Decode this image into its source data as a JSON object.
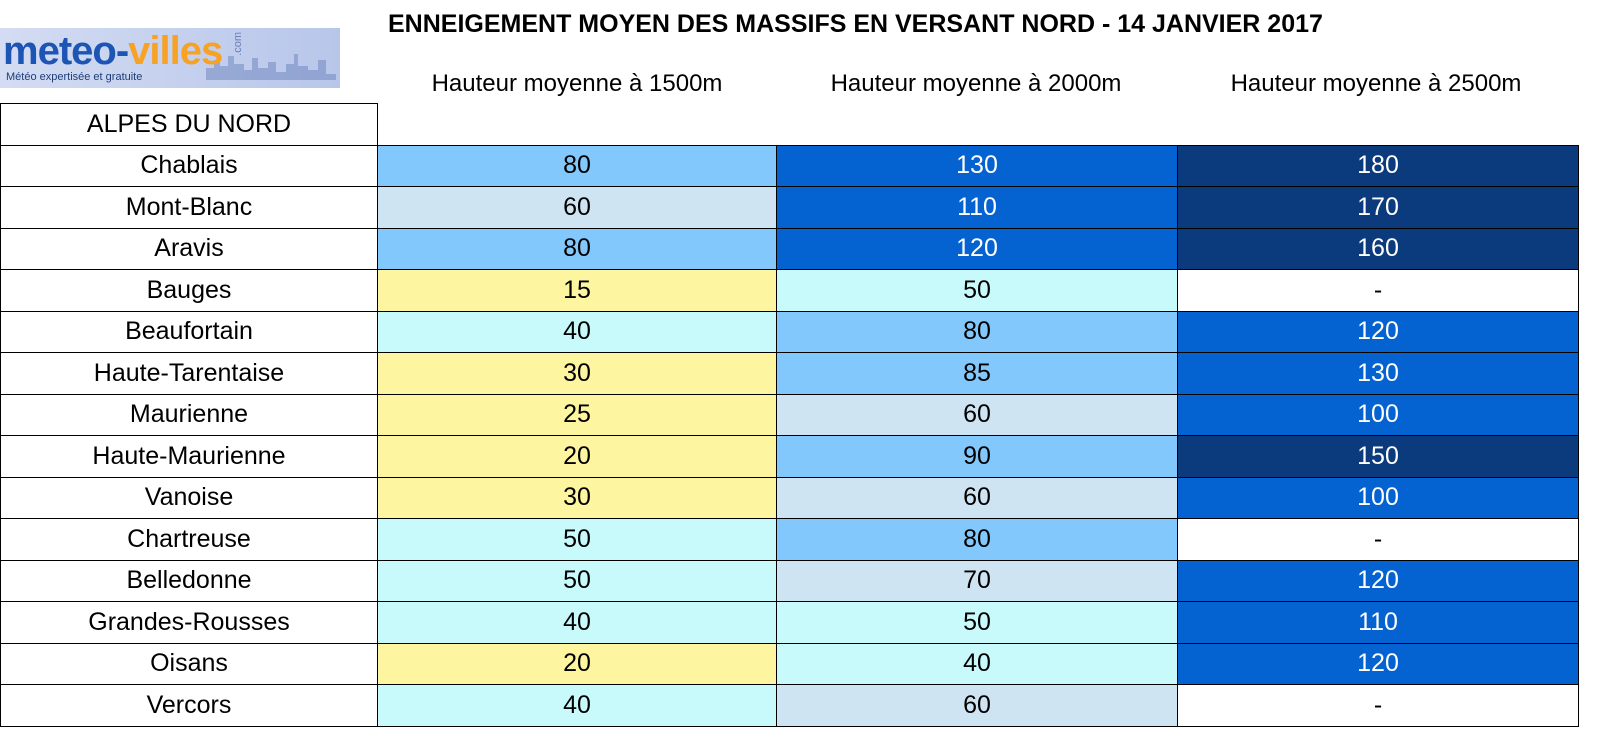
{
  "logo": {
    "part1": "meteo-",
    "part2": "villes",
    "com": ".com",
    "tagline": "Météo expertisée et gratuite"
  },
  "title": "ENNEIGEMENT MOYEN DES MASSIFS EN VERSANT NORD - 14 JANVIER 2017",
  "region": "ALPES DU NORD",
  "chart_data": {
    "type": "table",
    "title": "ENNEIGEMENT MOYEN DES MASSIFS EN VERSANT NORD - 14 JANVIER 2017",
    "columns": [
      "Hauteur moyenne à 1500m",
      "Hauteur moyenne à 2000m",
      "Hauteur moyenne à 2500m"
    ],
    "rows": [
      {
        "name": "Chablais",
        "values": [
          "80",
          "130",
          "180"
        ]
      },
      {
        "name": "Mont-Blanc",
        "values": [
          "60",
          "110",
          "170"
        ]
      },
      {
        "name": "Aravis",
        "values": [
          "80",
          "120",
          "160"
        ]
      },
      {
        "name": "Bauges",
        "values": [
          "15",
          "50",
          "-"
        ]
      },
      {
        "name": "Beaufortain",
        "values": [
          "40",
          "80",
          "120"
        ]
      },
      {
        "name": "Haute-Tarentaise",
        "values": [
          "30",
          "85",
          "130"
        ]
      },
      {
        "name": "Maurienne",
        "values": [
          "25",
          "60",
          "100"
        ]
      },
      {
        "name": "Haute-Maurienne",
        "values": [
          "20",
          "90",
          "150"
        ]
      },
      {
        "name": "Vanoise",
        "values": [
          "30",
          "60",
          "100"
        ]
      },
      {
        "name": "Chartreuse",
        "values": [
          "50",
          "80",
          "-"
        ]
      },
      {
        "name": "Belledonne",
        "values": [
          "50",
          "70",
          "120"
        ]
      },
      {
        "name": "Grandes-Rousses",
        "values": [
          "40",
          "50",
          "110"
        ]
      },
      {
        "name": "Oisans",
        "values": [
          "20",
          "40",
          "120"
        ]
      },
      {
        "name": "Vercors",
        "values": [
          "40",
          "60",
          "-"
        ]
      }
    ],
    "color_scale": {
      "none": "#ffffff",
      "lt_35": "#fdf5a0",
      "35_to_55": "#c8fafc",
      "60_to_70": "#cfe4f3",
      "75_to_90": "#83c8fd",
      "100_to_130": "#0563d1",
      "gt_140": "#0b3b7c"
    }
  }
}
